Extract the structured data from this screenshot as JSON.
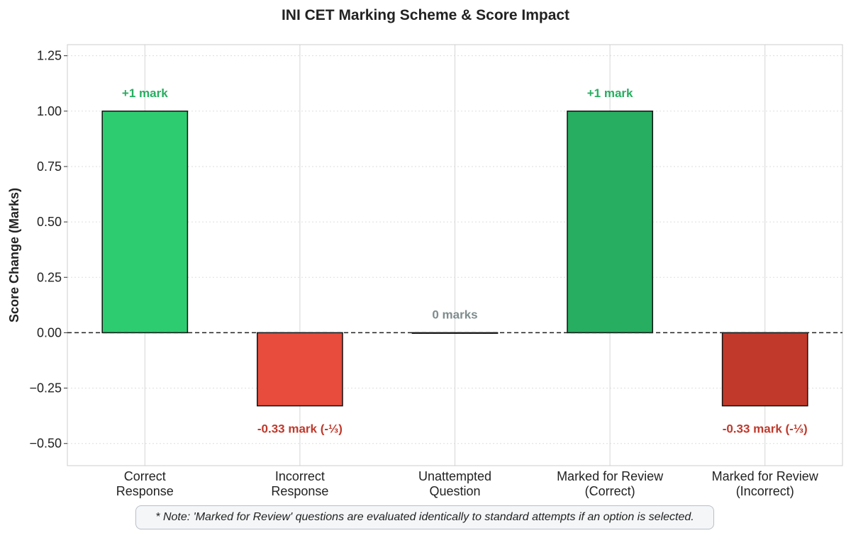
{
  "chart_data": {
    "type": "bar",
    "title": "INI CET Marking Scheme & Score Impact",
    "ylabel": "Score Change (Marks)",
    "xlabel": "",
    "categories": [
      [
        "Correct",
        "Response"
      ],
      [
        "Incorrect",
        "Response"
      ],
      [
        "Unattempted",
        "Question"
      ],
      [
        "Marked for Review",
        "(Correct)"
      ],
      [
        "Marked for Review",
        "(Incorrect)"
      ]
    ],
    "values": [
      1,
      -0.33,
      0,
      1,
      -0.33
    ],
    "bar_colors": [
      "#2ecc71",
      "#e74c3c",
      "#95a5a6",
      "#27ae60",
      "#c0392b"
    ],
    "data_labels": [
      "+1 mark",
      "-0.33 mark (-⅓)",
      "0 marks",
      "+1 mark",
      "-0.33 mark (-⅓)"
    ],
    "label_colors": [
      "#27ae60",
      "#c0392b",
      "#7f8c8d",
      "#27ae60",
      "#c0392b"
    ],
    "ylim": [
      -0.6,
      1.3
    ],
    "yticks": [
      1.25,
      1.0,
      0.75,
      0.5,
      0.25,
      0.0,
      -0.25,
      -0.5
    ],
    "ytick_labels": [
      "1.25",
      "1.00",
      "0.75",
      "0.50",
      "0.25",
      "0.00",
      "−0.25",
      "−0.50"
    ],
    "grid": true,
    "zero_line": "dashed"
  },
  "note": "* Note: 'Marked for Review' questions are evaluated identically to standard attempts if an option is selected."
}
